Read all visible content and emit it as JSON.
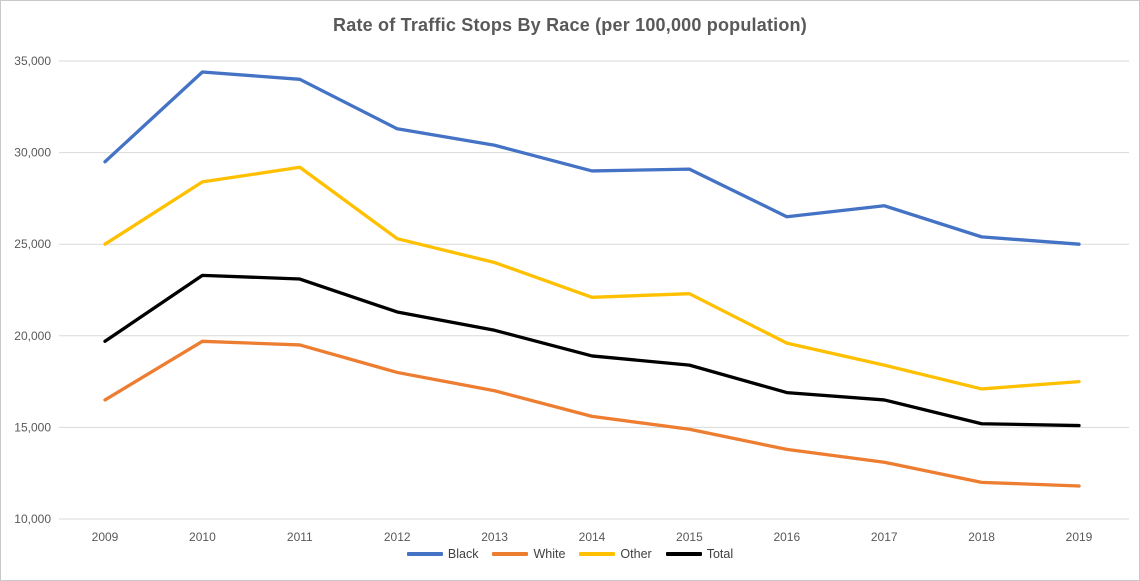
{
  "chart_data": {
    "type": "line",
    "title": "Rate of Traffic Stops By Race (per 100,000 population)",
    "categories": [
      "2009",
      "2010",
      "2011",
      "2012",
      "2013",
      "2014",
      "2015",
      "2016",
      "2017",
      "2018",
      "2019"
    ],
    "series": [
      {
        "name": "Black",
        "color": "#4472C4",
        "values": [
          29500,
          34400,
          34000,
          31300,
          30400,
          29000,
          29100,
          26500,
          27100,
          25400,
          25000
        ]
      },
      {
        "name": "White",
        "color": "#ED7D31",
        "values": [
          16500,
          19700,
          19500,
          18000,
          17000,
          15600,
          14900,
          13800,
          13100,
          12000,
          11800
        ]
      },
      {
        "name": "Other",
        "color": "#FFC000",
        "values": [
          25000,
          28400,
          29200,
          25300,
          24000,
          22100,
          22300,
          19600,
          18400,
          17100,
          17500
        ]
      },
      {
        "name": "Total",
        "color": "#000000",
        "values": [
          19700,
          23300,
          23100,
          21300,
          20300,
          18900,
          18400,
          16900,
          16500,
          15200,
          15100
        ]
      }
    ],
    "xlabel": "",
    "ylabel": "",
    "ylim": [
      10000,
      35000
    ],
    "ytick_step": 5000,
    "ytick_labels": [
      "10,000",
      "15,000",
      "20,000",
      "25,000",
      "30,000",
      "35,000"
    ],
    "grid": true,
    "legend_position": "bottom"
  }
}
